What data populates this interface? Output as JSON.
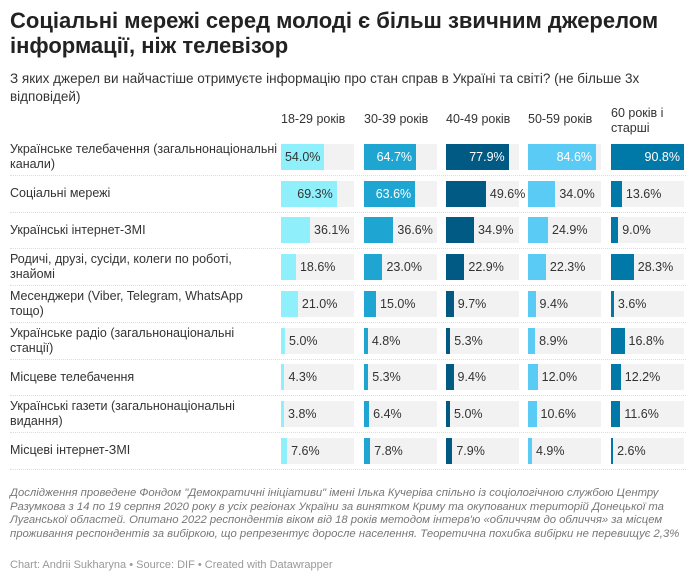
{
  "title": "Соціальні мережі серед молоді є більш звичним джерелом інформації, ніж телевізор",
  "subtitle": "З яких джерел ви найчастіше отримуєте інформацію про стан справ в Україні та світі? (не більше 3х відповідей)",
  "chart_data": {
    "type": "table",
    "columns": [
      "18-29 років",
      "30-39 років",
      "40-49 років",
      "50-59 років",
      "60 років і старші"
    ],
    "column_colors": [
      "#8ff0fb",
      "#1ea5d1",
      "#005a84",
      "#5acbf5",
      "#0079a8"
    ],
    "unit": "%",
    "rows": [
      {
        "label": "Українське телебачення (загальнонаціональні канали)",
        "values": [
          54.0,
          64.7,
          77.9,
          84.6,
          90.8
        ]
      },
      {
        "label": "Соціальні мережі",
        "values": [
          69.3,
          63.6,
          49.6,
          34.0,
          13.6
        ]
      },
      {
        "label": "Українські інтернет-ЗМІ",
        "values": [
          36.1,
          36.6,
          34.9,
          24.9,
          9.0
        ]
      },
      {
        "label": "Родичі, друзі, сусіди, колеги по роботі, знайомі",
        "values": [
          18.6,
          23.0,
          22.9,
          22.3,
          28.3
        ]
      },
      {
        "label": "Месенджери (Viber, Telegram, WhatsApp тощо)",
        "values": [
          21.0,
          15.0,
          9.7,
          9.4,
          3.6
        ]
      },
      {
        "label": "Українське радіо (загальнонаціональні станції)",
        "values": [
          5.0,
          4.8,
          5.3,
          8.9,
          16.8
        ]
      },
      {
        "label": "Місцеве телебачення",
        "values": [
          4.3,
          5.3,
          9.4,
          12.0,
          12.2
        ]
      },
      {
        "label": "Українські газети (загальнонаціональні видання)",
        "values": [
          3.8,
          6.4,
          5.0,
          10.6,
          11.6
        ]
      },
      {
        "label": "Місцеві інтернет-ЗМІ",
        "values": [
          7.6,
          7.8,
          7.9,
          4.9,
          2.6
        ]
      }
    ]
  },
  "notes": "Дослідження проведене Фондом \"Демократичні ініціативи\" імені Ілька Кучеріва спільно із соціологічною службою Центру Разумкова з 14 по 19 серпня 2020 року в усіх регіонах України за винятком Криму та окупованих територій Донецької та Луганської областей. Опитано 2022 респондентів віком від 18 років методом інтерв'ю «обличчям до обличчя» за місцем проживання респондентів за вибіркою, що репрезентує доросле населення. Теоретична похибка вибірки не перевищує 2,3%",
  "credit": "Chart: Andrii Sukharyna • Source: DIF • Created with Datawrapper"
}
